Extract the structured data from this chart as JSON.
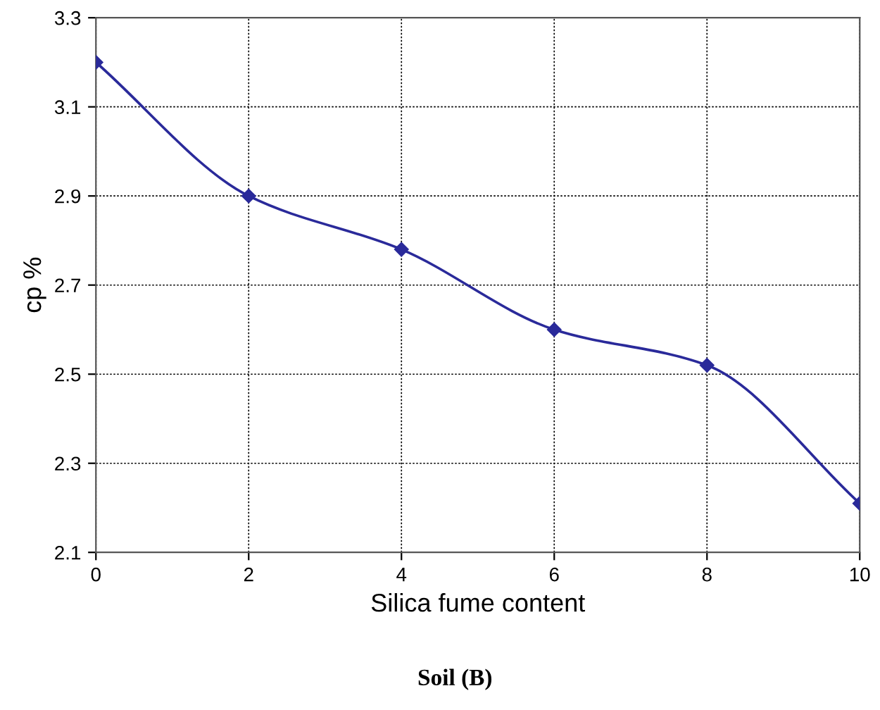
{
  "chart_data": {
    "type": "line",
    "title": "Soil (B)",
    "xlabel": "Silica fume content",
    "ylabel": "cp %",
    "x": [
      0,
      2,
      4,
      6,
      8,
      10
    ],
    "series": [
      {
        "color": "#2a2a9a",
        "values": [
          3.2,
          2.9,
          2.78,
          2.6,
          2.52,
          2.21
        ]
      }
    ],
    "xlim": [
      0,
      10
    ],
    "xticks": [
      0,
      2,
      4,
      6,
      8,
      10
    ],
    "ylim": [
      2.1,
      3.3
    ],
    "yticks": [
      2.1,
      2.3,
      2.5,
      2.7,
      2.9,
      3.1,
      3.3
    ],
    "grid": true,
    "marker": "diamond",
    "line_style": "solid"
  }
}
